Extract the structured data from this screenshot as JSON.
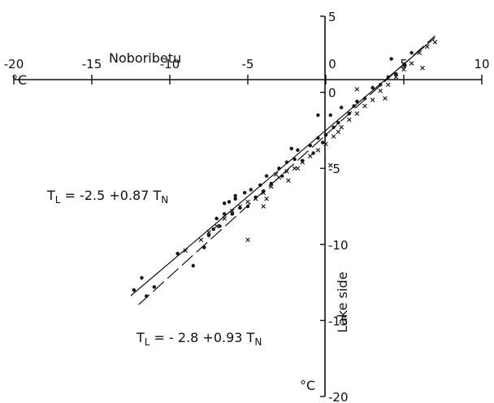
{
  "chart_data": {
    "type": "scatter",
    "x_axis": {
      "label": "Noboribetu",
      "unit": "°C",
      "range": [
        -20,
        10
      ],
      "ticks": [
        -20,
        -15,
        -10,
        -5,
        0,
        5,
        10
      ],
      "tick_labels": [
        "-20",
        "-15",
        "-10",
        "-5",
        "0",
        "5",
        "10"
      ]
    },
    "y_axis": {
      "label": "Lake side",
      "unit": "°C",
      "range": [
        -20,
        5
      ],
      "ticks": [
        5,
        0,
        -5,
        -10,
        -15,
        -20
      ],
      "tick_labels": [
        "5",
        "0",
        "-5",
        "-10",
        "-15",
        "-20"
      ]
    },
    "equations": [
      "T_L = -2.5 + 0.87 T_N",
      "T_L = -2.8 + 0.93 T_N"
    ],
    "regression_lines": [
      {
        "intercept": -2.5,
        "slope": 0.87,
        "x_range": [
          -12.5,
          7
        ],
        "style": "solid"
      },
      {
        "intercept": -2.8,
        "slope": 0.93,
        "x_range": [
          -12.0,
          7
        ],
        "style": "dashed"
      }
    ],
    "series": [
      {
        "marker": "dot",
        "points": [
          [
            -12.3,
            -13.0
          ],
          [
            -11.8,
            -12.2
          ],
          [
            -11.5,
            -13.4
          ],
          [
            -11.0,
            -12.8
          ],
          [
            -9.5,
            -10.6
          ],
          [
            -8.5,
            -11.4
          ],
          [
            -7.8,
            -10.2
          ],
          [
            -7.5,
            -9.4
          ],
          [
            -7.2,
            -9.0
          ],
          [
            -7.0,
            -8.3
          ],
          [
            -6.8,
            -8.8
          ],
          [
            -6.5,
            -8.0
          ],
          [
            -6.2,
            -7.2
          ],
          [
            -6.0,
            -8.0
          ],
          [
            -5.8,
            -7.0
          ],
          [
            -5.5,
            -7.6
          ],
          [
            -5.2,
            -6.6
          ],
          [
            -5.0,
            -7.5
          ],
          [
            -4.8,
            -6.4
          ],
          [
            -4.5,
            -6.9
          ],
          [
            -4.2,
            -6.1
          ],
          [
            -4.0,
            -6.5
          ],
          [
            -3.8,
            -5.5
          ],
          [
            -3.5,
            -6.0
          ],
          [
            -3.0,
            -5.0
          ],
          [
            -2.8,
            -5.5
          ],
          [
            -2.5,
            -4.6
          ],
          [
            -2.0,
            -4.4
          ],
          [
            -1.8,
            -3.8
          ],
          [
            -1.5,
            -4.5
          ],
          [
            -1.0,
            -3.5
          ],
          [
            -0.8,
            -4.0
          ],
          [
            -0.5,
            -3.0
          ],
          [
            -0.2,
            -3.3
          ],
          [
            0.0,
            -2.8
          ],
          [
            0.3,
            -1.5
          ],
          [
            0.5,
            -2.3
          ],
          [
            0.8,
            -2.0
          ],
          [
            1.0,
            -1.0
          ],
          [
            1.5,
            -1.4
          ],
          [
            2.0,
            -0.6
          ],
          [
            2.5,
            -0.4
          ],
          [
            3.0,
            0.3
          ],
          [
            3.5,
            0.5
          ],
          [
            4.0,
            1.0
          ],
          [
            4.5,
            1.2
          ],
          [
            5.0,
            1.8
          ],
          [
            5.5,
            2.6
          ],
          [
            -6.5,
            -7.3
          ],
          [
            -2.2,
            -3.7
          ],
          [
            1.8,
            -0.9
          ],
          [
            4.2,
            2.2
          ],
          [
            -5.8,
            -6.8
          ],
          [
            -0.5,
            -1.5
          ]
        ]
      },
      {
        "marker": "cross",
        "points": [
          [
            -9.0,
            -10.4
          ],
          [
            -8.0,
            -9.7
          ],
          [
            -7.5,
            -9.2
          ],
          [
            -7.0,
            -8.8
          ],
          [
            -6.5,
            -8.3
          ],
          [
            -6.0,
            -7.8
          ],
          [
            -5.5,
            -7.5
          ],
          [
            -5.0,
            -7.2
          ],
          [
            -4.5,
            -7.0
          ],
          [
            -4.0,
            -6.6
          ],
          [
            -3.8,
            -7.0
          ],
          [
            -3.5,
            -6.2
          ],
          [
            -3.0,
            -5.6
          ],
          [
            -2.5,
            -5.2
          ],
          [
            -2.0,
            -5.0
          ],
          [
            -1.5,
            -4.6
          ],
          [
            -1.0,
            -4.2
          ],
          [
            -0.5,
            -3.8
          ],
          [
            0.0,
            -3.4
          ],
          [
            0.5,
            -2.9
          ],
          [
            0.8,
            -2.6
          ],
          [
            1.0,
            -2.3
          ],
          [
            1.5,
            -1.8
          ],
          [
            2.0,
            -1.4
          ],
          [
            2.5,
            -0.9
          ],
          [
            3.0,
            -0.5
          ],
          [
            3.5,
            0.1
          ],
          [
            4.0,
            0.5
          ],
          [
            4.5,
            1.0
          ],
          [
            5.0,
            1.5
          ],
          [
            5.5,
            1.9
          ],
          [
            6.0,
            2.6
          ],
          [
            6.5,
            3.0
          ],
          [
            7.0,
            3.3
          ],
          [
            6.2,
            1.6
          ],
          [
            2.0,
            0.2
          ],
          [
            -5.0,
            -9.7
          ],
          [
            -4.0,
            -7.5
          ],
          [
            -1.8,
            -5.0
          ],
          [
            0.3,
            -4.8
          ],
          [
            3.8,
            -0.4
          ],
          [
            -3.2,
            -5.4
          ],
          [
            -2.4,
            -5.8
          ]
        ]
      }
    ]
  }
}
